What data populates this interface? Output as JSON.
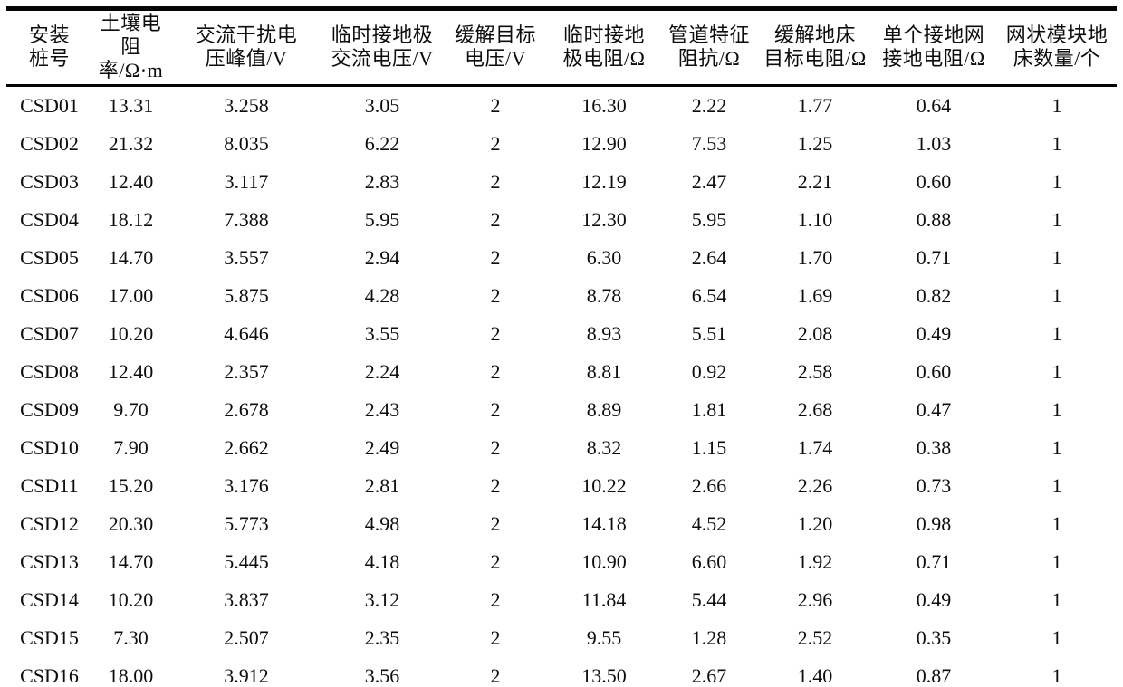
{
  "table": {
    "columns": [
      {
        "line1": "安装",
        "line2": "桩号"
      },
      {
        "line1": "土壤电阻",
        "line2": "率/Ω·m"
      },
      {
        "line1": "交流干扰电",
        "line2": "压峰值/V"
      },
      {
        "line1": "临时接地极",
        "line2": "交流电压/V"
      },
      {
        "line1": "缓解目标",
        "line2": "电压/V"
      },
      {
        "line1": "临时接地",
        "line2": "极电阻/Ω"
      },
      {
        "line1": "管道特征",
        "line2": "阻抗/Ω"
      },
      {
        "line1": "缓解地床",
        "line2": "目标电阻/Ω"
      },
      {
        "line1": "单个接地网",
        "line2": "接地电阻/Ω"
      },
      {
        "line1": "网状模块地",
        "line2": "床数量/个"
      }
    ],
    "rows": [
      [
        "CSD01",
        "13.31",
        "3.258",
        "3.05",
        "2",
        "16.30",
        "2.22",
        "1.77",
        "0.64",
        "1"
      ],
      [
        "CSD02",
        "21.32",
        "8.035",
        "6.22",
        "2",
        "12.90",
        "7.53",
        "1.25",
        "1.03",
        "1"
      ],
      [
        "CSD03",
        "12.40",
        "3.117",
        "2.83",
        "2",
        "12.19",
        "2.47",
        "2.21",
        "0.60",
        "1"
      ],
      [
        "CSD04",
        "18.12",
        "7.388",
        "5.95",
        "2",
        "12.30",
        "5.95",
        "1.10",
        "0.88",
        "1"
      ],
      [
        "CSD05",
        "14.70",
        "3.557",
        "2.94",
        "2",
        "6.30",
        "2.64",
        "1.70",
        "0.71",
        "1"
      ],
      [
        "CSD06",
        "17.00",
        "5.875",
        "4.28",
        "2",
        "8.78",
        "6.54",
        "1.69",
        "0.82",
        "1"
      ],
      [
        "CSD07",
        "10.20",
        "4.646",
        "3.55",
        "2",
        "8.93",
        "5.51",
        "2.08",
        "0.49",
        "1"
      ],
      [
        "CSD08",
        "12.40",
        "2.357",
        "2.24",
        "2",
        "8.81",
        "0.92",
        "2.58",
        "0.60",
        "1"
      ],
      [
        "CSD09",
        "9.70",
        "2.678",
        "2.43",
        "2",
        "8.89",
        "1.81",
        "2.68",
        "0.47",
        "1"
      ],
      [
        "CSD10",
        "7.90",
        "2.662",
        "2.49",
        "2",
        "8.32",
        "1.15",
        "1.74",
        "0.38",
        "1"
      ],
      [
        "CSD11",
        "15.20",
        "3.176",
        "2.81",
        "2",
        "10.22",
        "2.66",
        "2.26",
        "0.73",
        "1"
      ],
      [
        "CSD12",
        "20.30",
        "5.773",
        "4.98",
        "2",
        "14.18",
        "4.52",
        "1.20",
        "0.98",
        "1"
      ],
      [
        "CSD13",
        "14.70",
        "5.445",
        "4.18",
        "2",
        "10.90",
        "6.60",
        "1.92",
        "0.71",
        "1"
      ],
      [
        "CSD14",
        "10.20",
        "3.837",
        "3.12",
        "2",
        "11.84",
        "5.44",
        "2.96",
        "0.49",
        "1"
      ],
      [
        "CSD15",
        "7.30",
        "2.507",
        "2.35",
        "2",
        "9.55",
        "1.28",
        "2.52",
        "0.35",
        "1"
      ],
      [
        "CSD16",
        "18.00",
        "3.912",
        "3.56",
        "2",
        "13.50",
        "2.67",
        "1.40",
        "0.87",
        "1"
      ]
    ]
  }
}
